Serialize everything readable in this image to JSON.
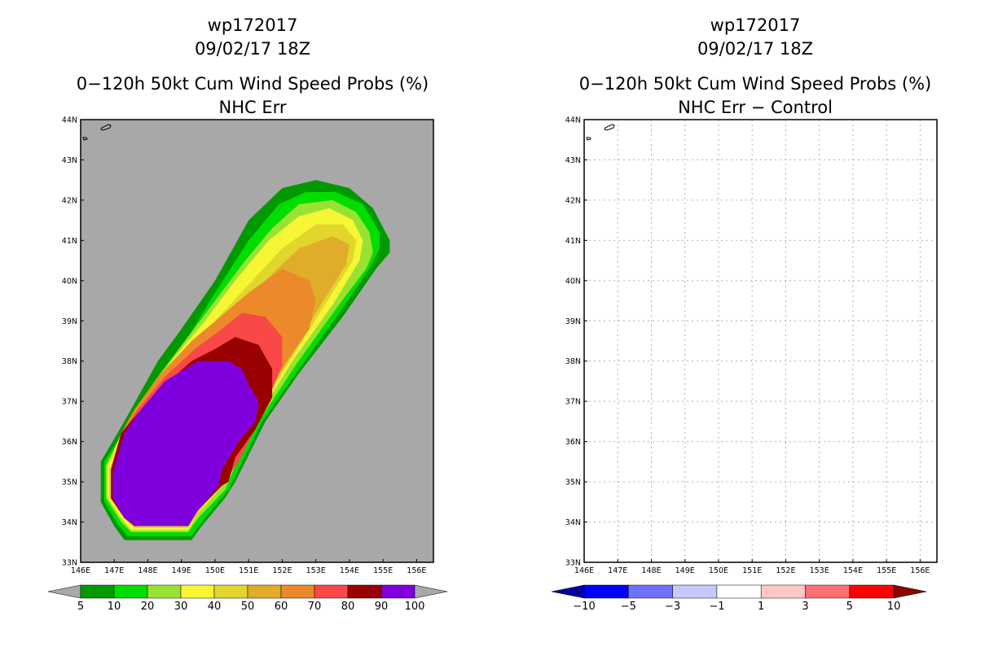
{
  "chart_data": [
    {
      "type": "contour_map",
      "title_line1": "wp172017",
      "title_line2": "09/02/17 18Z",
      "title_line3": "0−120h 50kt Cum Wind Speed Probs (%)",
      "title_line4": "NHC Err",
      "x_ticks": [
        "146E",
        "147E",
        "148E",
        "149E",
        "150E",
        "151E",
        "152E",
        "153E",
        "154E",
        "155E",
        "156E"
      ],
      "y_ticks": [
        "33N",
        "34N",
        "35N",
        "36N",
        "37N",
        "38N",
        "39N",
        "40N",
        "41N",
        "42N",
        "43N",
        "44N"
      ],
      "xlim": [
        146,
        156.5
      ],
      "ylim": [
        33,
        44
      ],
      "background": "#a8a8a8",
      "levels": [
        5,
        10,
        20,
        30,
        40,
        50,
        60,
        70,
        80,
        90,
        100
      ],
      "colors": [
        "#009900",
        "#00dd00",
        "#99e233",
        "#f6f634",
        "#e2d52b",
        "#e0ad2b",
        "#ec8a2b",
        "#f94848",
        "#990000",
        "#8000dd"
      ],
      "contours": [
        {
          "level": 5,
          "lonlat": [
            [
              146.6,
              35.5
            ],
            [
              146.6,
              34.5
            ],
            [
              147.0,
              33.9
            ],
            [
              147.3,
              33.55
            ],
            [
              149.3,
              33.55
            ],
            [
              149.6,
              33.9
            ],
            [
              150.3,
              34.6
            ],
            [
              150.6,
              35.0
            ],
            [
              151.5,
              36.5
            ],
            [
              152.5,
              37.7
            ],
            [
              153.8,
              39.1
            ],
            [
              154.8,
              40.3
            ],
            [
              155.2,
              40.7
            ],
            [
              155.2,
              41.0
            ],
            [
              154.7,
              41.8
            ],
            [
              154.0,
              42.3
            ],
            [
              153.0,
              42.5
            ],
            [
              152.0,
              42.3
            ],
            [
              151.0,
              41.5
            ],
            [
              150.0,
              40.0
            ],
            [
              149.0,
              38.8
            ],
            [
              148.3,
              38.0
            ],
            [
              147.3,
              36.5
            ]
          ]
        },
        {
          "level": 10,
          "lonlat": [
            [
              146.7,
              35.5
            ],
            [
              146.7,
              34.5
            ],
            [
              147.1,
              33.95
            ],
            [
              147.4,
              33.65
            ],
            [
              149.3,
              33.65
            ],
            [
              149.6,
              34.0
            ],
            [
              150.4,
              34.8
            ],
            [
              151.4,
              36.5
            ],
            [
              152.5,
              37.8
            ],
            [
              153.7,
              39.2
            ],
            [
              154.6,
              40.3
            ],
            [
              154.9,
              40.8
            ],
            [
              154.9,
              41.2
            ],
            [
              154.4,
              41.9
            ],
            [
              153.6,
              42.2
            ],
            [
              152.7,
              42.2
            ],
            [
              151.9,
              41.9
            ],
            [
              151.0,
              41.0
            ],
            [
              150.0,
              39.7
            ],
            [
              149.2,
              38.6
            ],
            [
              148.3,
              37.4
            ],
            [
              147.4,
              36.4
            ]
          ]
        },
        {
          "level": 20,
          "lonlat": [
            [
              146.75,
              35.4
            ],
            [
              146.75,
              34.6
            ],
            [
              147.2,
              34.0
            ],
            [
              147.5,
              33.75
            ],
            [
              149.2,
              33.75
            ],
            [
              149.5,
              34.1
            ],
            [
              150.3,
              34.8
            ],
            [
              150.6,
              35.4
            ],
            [
              151.3,
              36.5
            ],
            [
              152.4,
              37.9
            ],
            [
              153.6,
              39.3
            ],
            [
              154.5,
              40.3
            ],
            [
              154.7,
              40.7
            ],
            [
              154.6,
              41.2
            ],
            [
              154.2,
              41.7
            ],
            [
              153.5,
              42.0
            ],
            [
              152.5,
              41.9
            ],
            [
              151.7,
              41.3
            ],
            [
              150.9,
              40.5
            ],
            [
              150.0,
              39.5
            ],
            [
              149.1,
              38.5
            ],
            [
              148.2,
              37.5
            ],
            [
              147.4,
              36.5
            ]
          ]
        },
        {
          "level": 30,
          "lonlat": [
            [
              146.8,
              35.4
            ],
            [
              146.8,
              34.6
            ],
            [
              147.2,
              34.1
            ],
            [
              147.5,
              33.8
            ],
            [
              149.2,
              33.8
            ],
            [
              149.5,
              34.2
            ],
            [
              150.3,
              35.0
            ],
            [
              151.2,
              36.5
            ],
            [
              152.3,
              38.0
            ],
            [
              153.5,
              39.4
            ],
            [
              154.3,
              40.5
            ],
            [
              154.4,
              41.0
            ],
            [
              154.1,
              41.5
            ],
            [
              153.4,
              41.8
            ],
            [
              152.5,
              41.6
            ],
            [
              151.6,
              41.0
            ],
            [
              150.6,
              40.0
            ],
            [
              149.7,
              39.0
            ],
            [
              148.7,
              38.0
            ],
            [
              147.7,
              36.8
            ],
            [
              147.2,
              36.2
            ]
          ]
        },
        {
          "level": 40,
          "lonlat": [
            [
              146.85,
              35.3
            ],
            [
              146.85,
              34.6
            ],
            [
              147.3,
              34.1
            ],
            [
              147.6,
              33.85
            ],
            [
              149.2,
              33.85
            ],
            [
              149.5,
              34.2
            ],
            [
              150.2,
              35.0
            ],
            [
              151.0,
              36.4
            ],
            [
              152.0,
              37.7
            ],
            [
              153.2,
              39.3
            ],
            [
              154.1,
              40.5
            ],
            [
              154.2,
              41.0
            ],
            [
              153.8,
              41.4
            ],
            [
              153.0,
              41.4
            ],
            [
              152.0,
              40.8
            ],
            [
              151.0,
              39.9
            ],
            [
              150.0,
              39.0
            ],
            [
              149.0,
              38.0
            ],
            [
              148.0,
              37.0
            ],
            [
              147.3,
              36.2
            ]
          ]
        },
        {
          "level": 50,
          "lonlat": [
            [
              146.9,
              35.3
            ],
            [
              146.9,
              34.6
            ],
            [
              147.3,
              34.1
            ],
            [
              147.6,
              33.9
            ],
            [
              149.2,
              33.9
            ],
            [
              149.5,
              34.3
            ],
            [
              150.2,
              35.0
            ],
            [
              150.8,
              36.2
            ],
            [
              151.8,
              37.5
            ],
            [
              153.0,
              39.2
            ],
            [
              153.9,
              40.4
            ],
            [
              154.0,
              40.9
            ],
            [
              153.5,
              41.1
            ],
            [
              152.5,
              40.8
            ],
            [
              151.5,
              40.0
            ],
            [
              150.5,
              39.2
            ],
            [
              149.5,
              38.4
            ],
            [
              148.5,
              37.5
            ],
            [
              147.8,
              36.8
            ],
            [
              147.3,
              36.2
            ]
          ]
        },
        {
          "level": 60,
          "lonlat": [
            [
              146.9,
              35.3
            ],
            [
              146.9,
              34.6
            ],
            [
              147.3,
              34.1
            ],
            [
              147.6,
              33.9
            ],
            [
              149.2,
              33.9
            ],
            [
              149.5,
              34.3
            ],
            [
              150.2,
              35.0
            ],
            [
              150.6,
              35.9
            ],
            [
              151.5,
              37.2
            ],
            [
              152.8,
              38.8
            ],
            [
              153.0,
              39.5
            ],
            [
              152.8,
              40.0
            ],
            [
              152.0,
              40.3
            ],
            [
              151.0,
              39.7
            ],
            [
              150.3,
              39.2
            ],
            [
              149.3,
              38.5
            ],
            [
              148.3,
              37.6
            ],
            [
              147.6,
              36.8
            ],
            [
              147.2,
              36.2
            ]
          ]
        },
        {
          "level": 70,
          "lonlat": [
            [
              146.9,
              35.3
            ],
            [
              146.9,
              34.6
            ],
            [
              147.3,
              34.1
            ],
            [
              147.6,
              33.9
            ],
            [
              149.2,
              33.9
            ],
            [
              149.5,
              34.3
            ],
            [
              150.2,
              34.9
            ],
            [
              150.7,
              35.5
            ],
            [
              151.3,
              36.5
            ],
            [
              152.0,
              37.9
            ],
            [
              152.0,
              38.6
            ],
            [
              151.5,
              39.1
            ],
            [
              150.8,
              39.2
            ],
            [
              150.2,
              38.8
            ],
            [
              149.4,
              38.3
            ],
            [
              148.5,
              37.6
            ],
            [
              147.7,
              36.8
            ],
            [
              147.2,
              36.2
            ]
          ]
        },
        {
          "level": 80,
          "lonlat": [
            [
              146.9,
              35.3
            ],
            [
              146.9,
              34.6
            ],
            [
              147.3,
              34.1
            ],
            [
              147.6,
              33.9
            ],
            [
              149.2,
              33.9
            ],
            [
              149.5,
              34.3
            ],
            [
              150.2,
              34.9
            ],
            [
              150.4,
              35.0
            ],
            [
              150.6,
              35.6
            ],
            [
              151.2,
              36.3
            ],
            [
              151.7,
              37.1
            ],
            [
              151.7,
              37.8
            ],
            [
              151.3,
              38.4
            ],
            [
              150.6,
              38.6
            ],
            [
              150.0,
              38.3
            ],
            [
              149.3,
              38.0
            ],
            [
              148.5,
              37.4
            ],
            [
              147.7,
              36.7
            ],
            [
              147.2,
              36.2
            ]
          ]
        },
        {
          "level": 90,
          "lonlat": [
            [
              146.95,
              35.2
            ],
            [
              146.95,
              34.6
            ],
            [
              147.3,
              34.1
            ],
            [
              147.65,
              33.9
            ],
            [
              149.2,
              33.9
            ],
            [
              149.5,
              34.3
            ],
            [
              150.1,
              34.9
            ],
            [
              150.2,
              35.3
            ],
            [
              150.7,
              36.0
            ],
            [
              151.2,
              36.5
            ],
            [
              151.3,
              37.0
            ],
            [
              151.0,
              37.4
            ],
            [
              150.8,
              37.8
            ],
            [
              150.4,
              38.0
            ],
            [
              149.5,
              38.0
            ],
            [
              148.5,
              37.5
            ],
            [
              147.8,
              36.8
            ],
            [
              147.3,
              36.2
            ]
          ]
        }
      ],
      "colorbar": {
        "labels": [
          "5",
          "10",
          "20",
          "30",
          "40",
          "50",
          "60",
          "70",
          "80",
          "90",
          "100"
        ],
        "under_color": "#a8a8a8",
        "over_color": "#a8a8a8"
      }
    },
    {
      "type": "contour_map",
      "title_line1": "wp172017",
      "title_line2": "09/02/17 18Z",
      "title_line3": "0−120h 50kt Cum Wind Speed Probs (%)",
      "title_line4": "NHC Err − Control",
      "x_ticks": [
        "146E",
        "147E",
        "148E",
        "149E",
        "150E",
        "151E",
        "152E",
        "153E",
        "154E",
        "155E",
        "156E"
      ],
      "y_ticks": [
        "33N",
        "34N",
        "35N",
        "36N",
        "37N",
        "38N",
        "39N",
        "40N",
        "41N",
        "42N",
        "43N",
        "44N"
      ],
      "xlim": [
        146,
        156.5
      ],
      "ylim": [
        33,
        44
      ],
      "background": "#ffffff",
      "grid": true,
      "contours": [],
      "colorbar": {
        "labels": [
          "−10",
          "−5",
          "−3",
          "−1",
          "1",
          "3",
          "5",
          "10"
        ],
        "colors": [
          "#0000ff",
          "#7070ff",
          "#c8c8ff",
          "#ffffff",
          "#ffc8c8",
          "#ff7070",
          "#ff0000"
        ],
        "under_color": "#00009a",
        "over_color": "#8b0000"
      }
    }
  ]
}
